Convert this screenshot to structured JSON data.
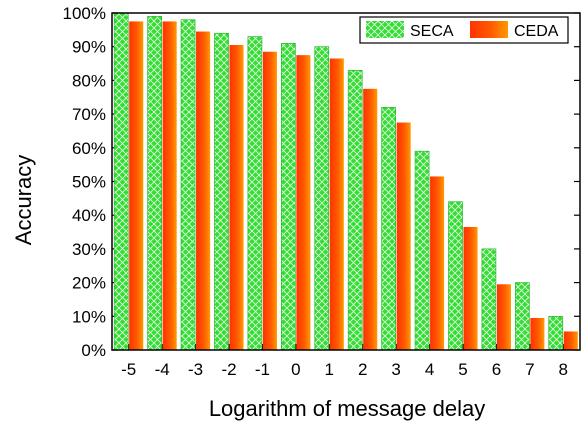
{
  "chart_data": {
    "type": "bar",
    "categories": [
      "-5",
      "-4",
      "-3",
      "-2",
      "-1",
      "0",
      "1",
      "2",
      "3",
      "4",
      "5",
      "6",
      "7",
      "8"
    ],
    "series": [
      {
        "name": "SECA",
        "values": [
          100,
          99,
          98,
          94,
          93,
          91,
          90,
          83,
          72,
          59,
          44,
          30,
          20,
          10
        ]
      },
      {
        "name": "CEDA",
        "values": [
          97.5,
          97.5,
          94.5,
          90.5,
          88.5,
          87.5,
          86.5,
          77.5,
          67.5,
          51.5,
          36.5,
          19.5,
          9.5,
          5.5
        ]
      }
    ],
    "xlabel": "Logarithm of message delay",
    "ylabel": "Accuracy",
    "ylim": [
      0,
      100
    ],
    "yticks": [
      "0%",
      "10%",
      "20%",
      "30%",
      "40%",
      "50%",
      "60%",
      "70%",
      "80%",
      "90%",
      "100%"
    ],
    "legend_position": "top-right",
    "grid": false,
    "colors": {
      "seca": "#33dd33",
      "seca_hatch": "#ffffff",
      "ceda_light": "#ff9900",
      "ceda_dark": "#ff3300",
      "axis": "#000000"
    }
  }
}
